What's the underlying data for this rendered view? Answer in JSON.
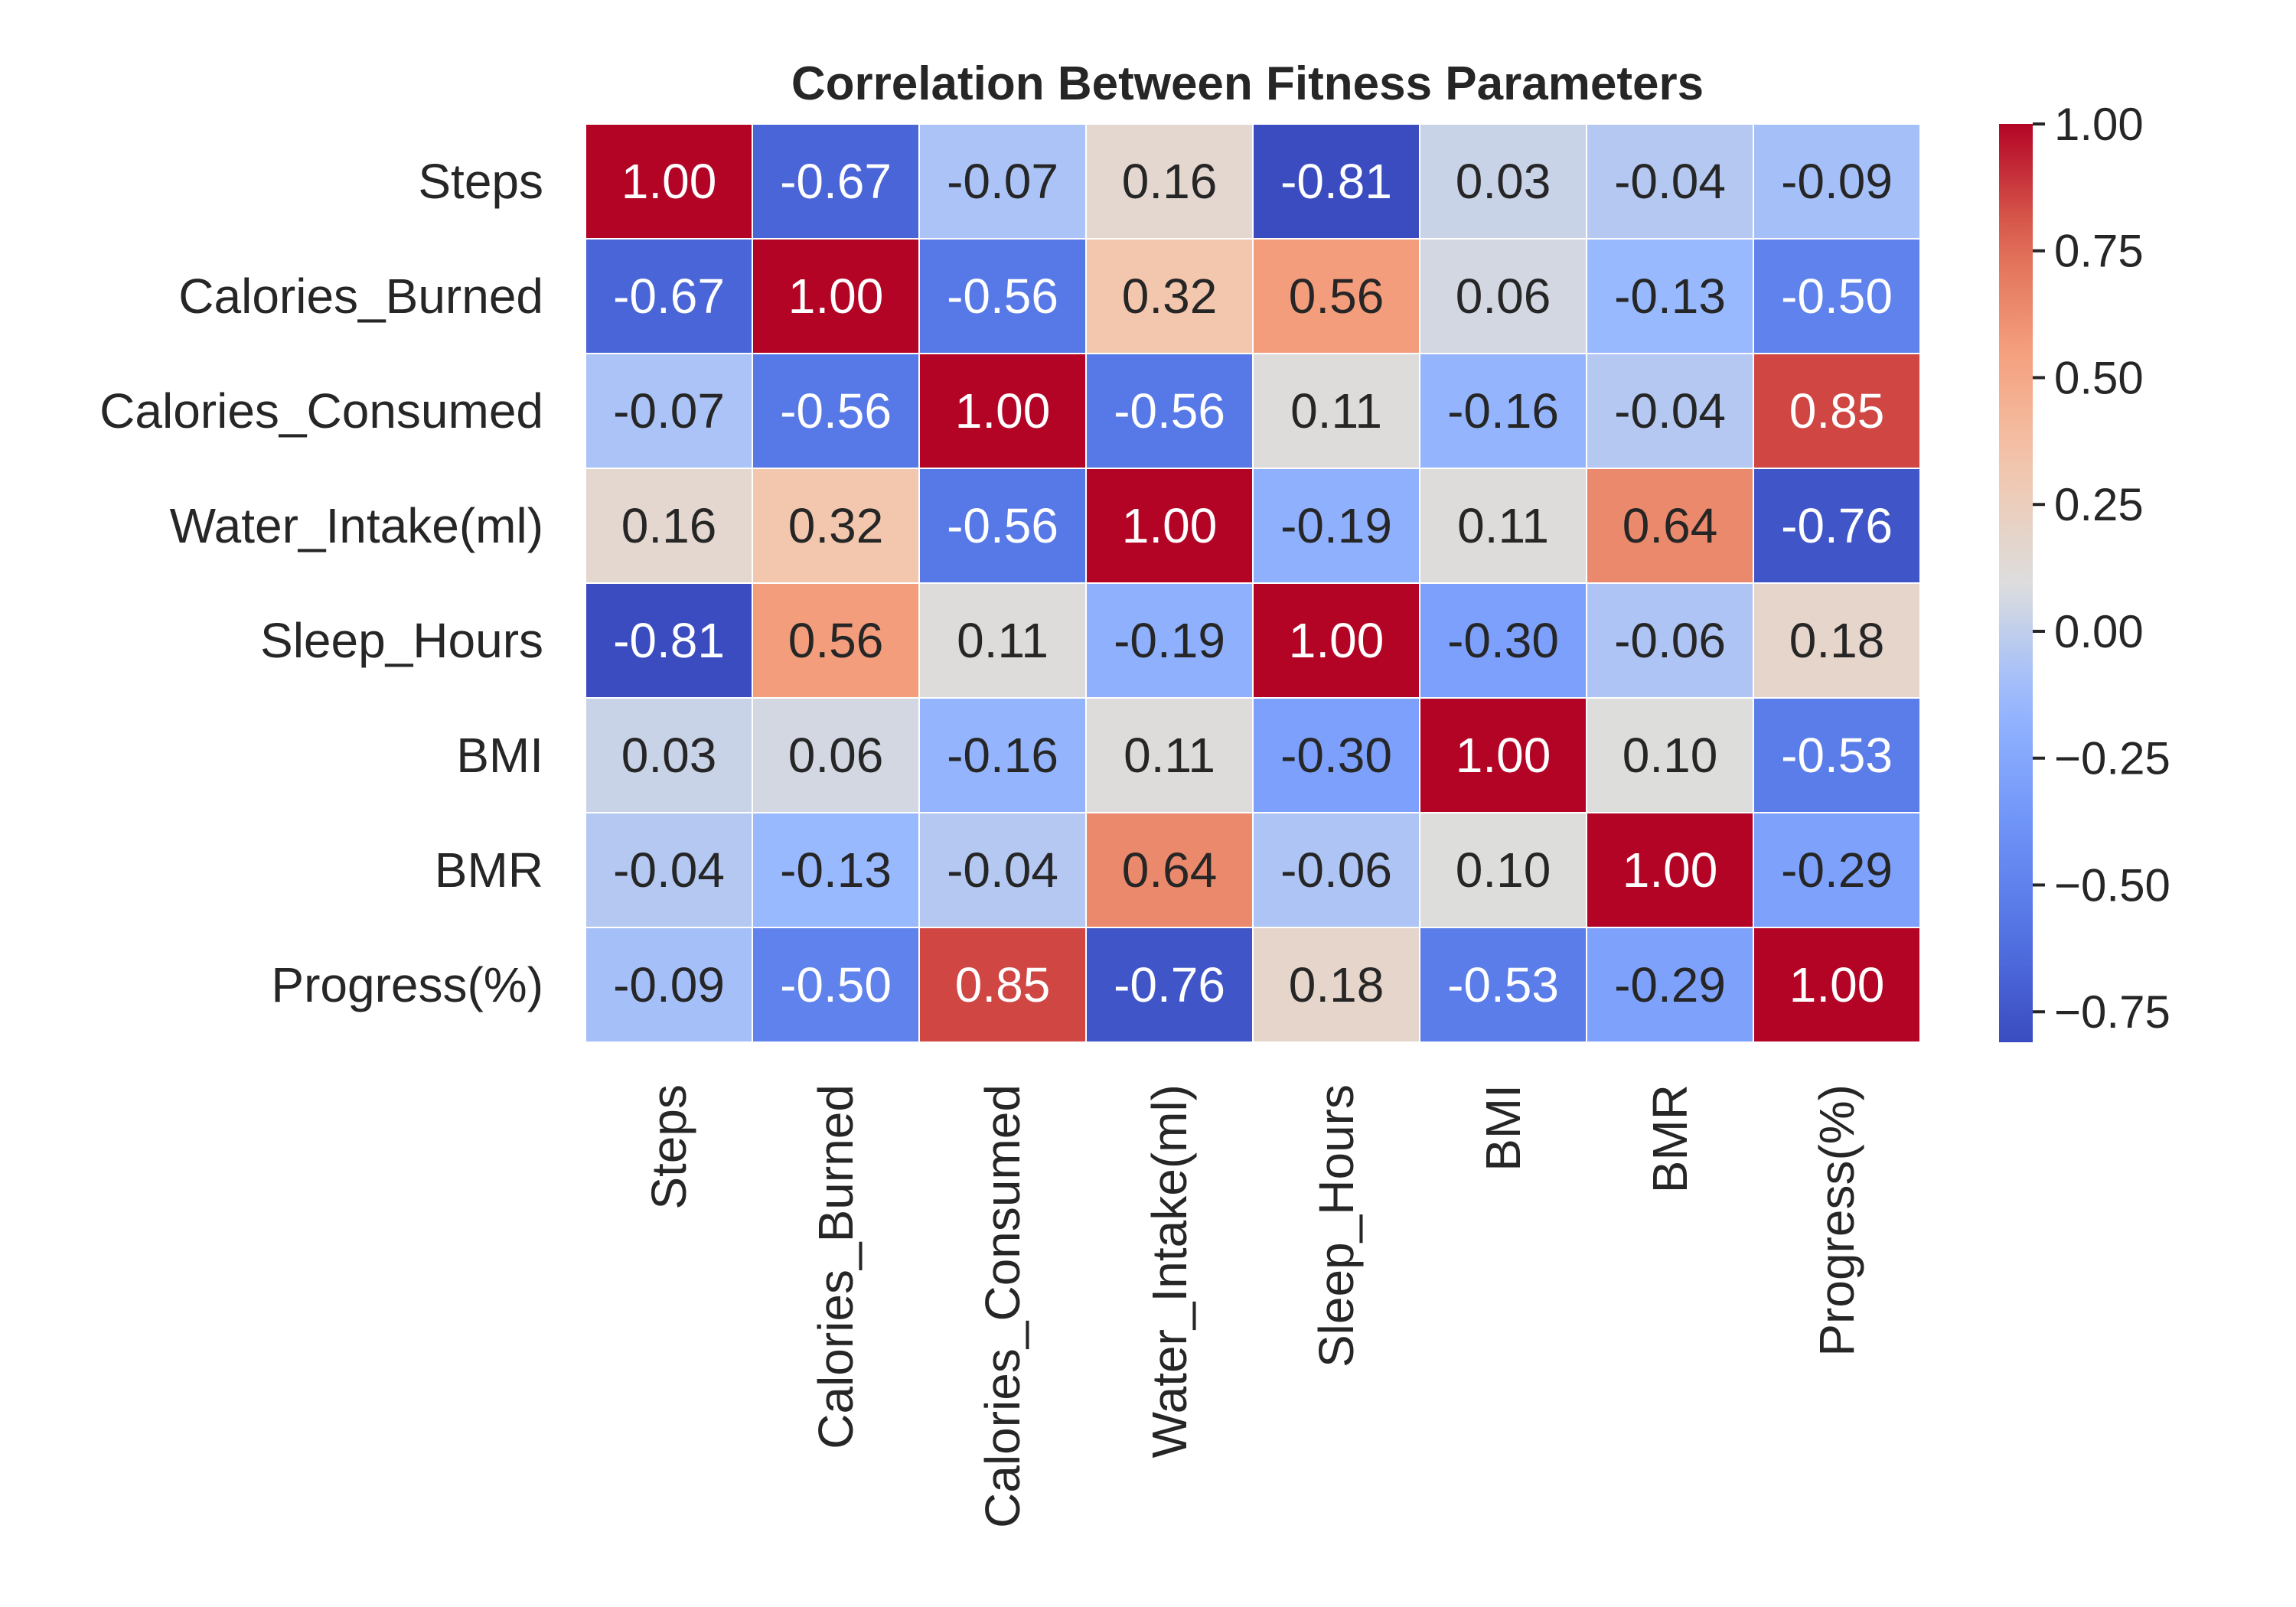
{
  "chart_data": {
    "type": "heatmap",
    "title": "Correlation Between Fitness Parameters",
    "colormap": "coolwarm",
    "vmin": -0.81,
    "vmax": 1.0,
    "labels": [
      "Steps",
      "Calories_Burned",
      "Calories_Consumed",
      "Water_Intake(ml)",
      "Sleep_Hours",
      "BMI",
      "BMR",
      "Progress(%)"
    ],
    "matrix": [
      [
        1.0,
        -0.67,
        -0.07,
        0.16,
        -0.81,
        0.03,
        -0.04,
        -0.09
      ],
      [
        -0.67,
        1.0,
        -0.56,
        0.32,
        0.56,
        0.06,
        -0.13,
        -0.5
      ],
      [
        -0.07,
        -0.56,
        1.0,
        -0.56,
        0.11,
        -0.16,
        -0.04,
        0.85
      ],
      [
        0.16,
        0.32,
        -0.56,
        1.0,
        -0.19,
        0.11,
        0.64,
        -0.76
      ],
      [
        -0.81,
        0.56,
        0.11,
        -0.19,
        1.0,
        -0.3,
        -0.06,
        0.18
      ],
      [
        0.03,
        0.06,
        -0.16,
        0.11,
        -0.3,
        1.0,
        0.1,
        -0.53
      ],
      [
        -0.04,
        -0.13,
        -0.04,
        0.64,
        -0.06,
        0.1,
        1.0,
        -0.29
      ],
      [
        -0.09,
        -0.5,
        0.85,
        -0.76,
        0.18,
        -0.53,
        -0.29,
        1.0
      ]
    ],
    "value_format": "0.00",
    "colorbar": {
      "ticks": [
        1.0,
        0.75,
        0.5,
        0.25,
        0.0,
        -0.25,
        -0.5,
        -0.75
      ],
      "tick_labels": [
        "1.00",
        "0.75",
        "0.50",
        "0.25",
        "0.00",
        "−0.25",
        "−0.50",
        "−0.75"
      ]
    },
    "grid": true,
    "grid_color": "#ffffff"
  }
}
